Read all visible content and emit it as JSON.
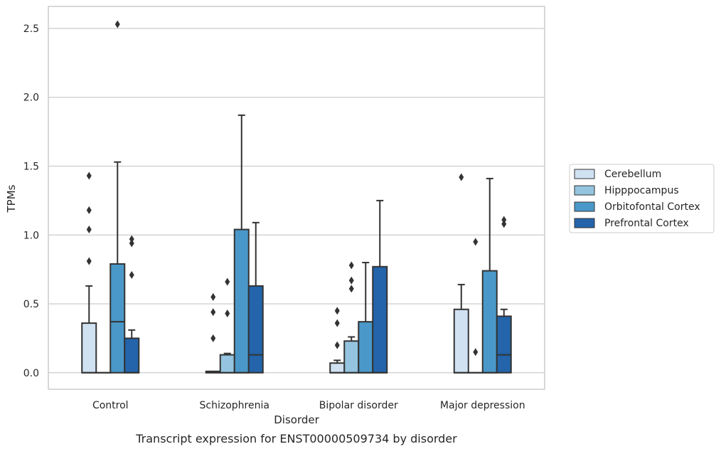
{
  "caption": "Transcript expression for ENST00000509734 by disorder",
  "colors": {
    "Cerebellum": "#d0e1f2",
    "Hipppocampus": "#94c4df",
    "Orbitofontal Cortex": "#4a98c9",
    "Prefrontal Cortex": "#2364aa",
    "edge": "#333333",
    "grid": "#cccccc",
    "frame": "#cccccc"
  },
  "chart_data": {
    "type": "box",
    "title": "",
    "xlabel": "Disorder",
    "ylabel": "TPMs",
    "ylim": [
      -0.12,
      2.66
    ],
    "yticks": [
      0.0,
      0.5,
      1.0,
      1.5,
      2.0,
      2.5
    ],
    "ytick_labels": [
      "0.0",
      "0.5",
      "1.0",
      "1.5",
      "2.0",
      "2.5"
    ],
    "grid": true,
    "legend_position": "right",
    "categories": [
      "Control",
      "Schizophrenia",
      "Bipolar disorder",
      "Major depression"
    ],
    "series": [
      {
        "name": "Cerebellum",
        "boxes": [
          {
            "min": 0.0,
            "q1": 0.0,
            "median": 0.0,
            "q3": 0.36,
            "max": 0.63,
            "outliers": [
              0.81,
              1.04,
              1.18,
              1.43
            ]
          },
          {
            "min": 0.0,
            "q1": 0.0,
            "median": 0.0,
            "q3": 0.01,
            "max": 0.01,
            "outliers": [
              0.25,
              0.44,
              0.55
            ]
          },
          {
            "min": 0.0,
            "q1": 0.0,
            "median": 0.0,
            "q3": 0.07,
            "max": 0.09,
            "outliers": [
              0.2,
              0.36,
              0.45
            ]
          },
          {
            "min": 0.0,
            "q1": 0.0,
            "median": 0.0,
            "q3": 0.46,
            "max": 0.64,
            "outliers": [
              1.42
            ]
          }
        ]
      },
      {
        "name": "Hipppocampus",
        "boxes": [
          {
            "min": 0.0,
            "q1": 0.0,
            "median": 0.0,
            "q3": 0.0,
            "max": 0.0,
            "outliers": []
          },
          {
            "min": 0.0,
            "q1": 0.0,
            "median": 0.0,
            "q3": 0.13,
            "max": 0.14,
            "outliers": [
              0.43,
              0.66
            ]
          },
          {
            "min": 0.0,
            "q1": 0.0,
            "median": 0.0,
            "q3": 0.23,
            "max": 0.26,
            "outliers": [
              0.61,
              0.67,
              0.78
            ]
          },
          {
            "min": 0.0,
            "q1": 0.0,
            "median": 0.0,
            "q3": 0.0,
            "max": 0.0,
            "outliers": [
              0.15,
              0.95
            ]
          }
        ]
      },
      {
        "name": "Orbitofontal Cortex",
        "boxes": [
          {
            "min": 0.0,
            "q1": 0.0,
            "median": 0.37,
            "q3": 0.79,
            "max": 1.53,
            "outliers": [
              2.53
            ]
          },
          {
            "min": 0.0,
            "q1": 0.0,
            "median": 0.0,
            "q3": 1.04,
            "max": 1.87,
            "outliers": []
          },
          {
            "min": 0.0,
            "q1": 0.0,
            "median": 0.0,
            "q3": 0.37,
            "max": 0.8,
            "outliers": []
          },
          {
            "min": 0.0,
            "q1": 0.0,
            "median": 0.0,
            "q3": 0.74,
            "max": 1.41,
            "outliers": []
          }
        ]
      },
      {
        "name": "Prefrontal Cortex",
        "boxes": [
          {
            "min": 0.0,
            "q1": 0.0,
            "median": 0.0,
            "q3": 0.25,
            "max": 0.31,
            "outliers": [
              0.71,
              0.94,
              0.97
            ]
          },
          {
            "min": 0.0,
            "q1": 0.0,
            "median": 0.13,
            "q3": 0.63,
            "max": 1.09,
            "outliers": []
          },
          {
            "min": 0.0,
            "q1": 0.0,
            "median": 0.0,
            "q3": 0.77,
            "max": 1.25,
            "outliers": []
          },
          {
            "min": 0.0,
            "q1": 0.0,
            "median": 0.13,
            "q3": 0.41,
            "max": 0.46,
            "outliers": [
              1.08,
              1.11
            ]
          }
        ]
      }
    ]
  }
}
